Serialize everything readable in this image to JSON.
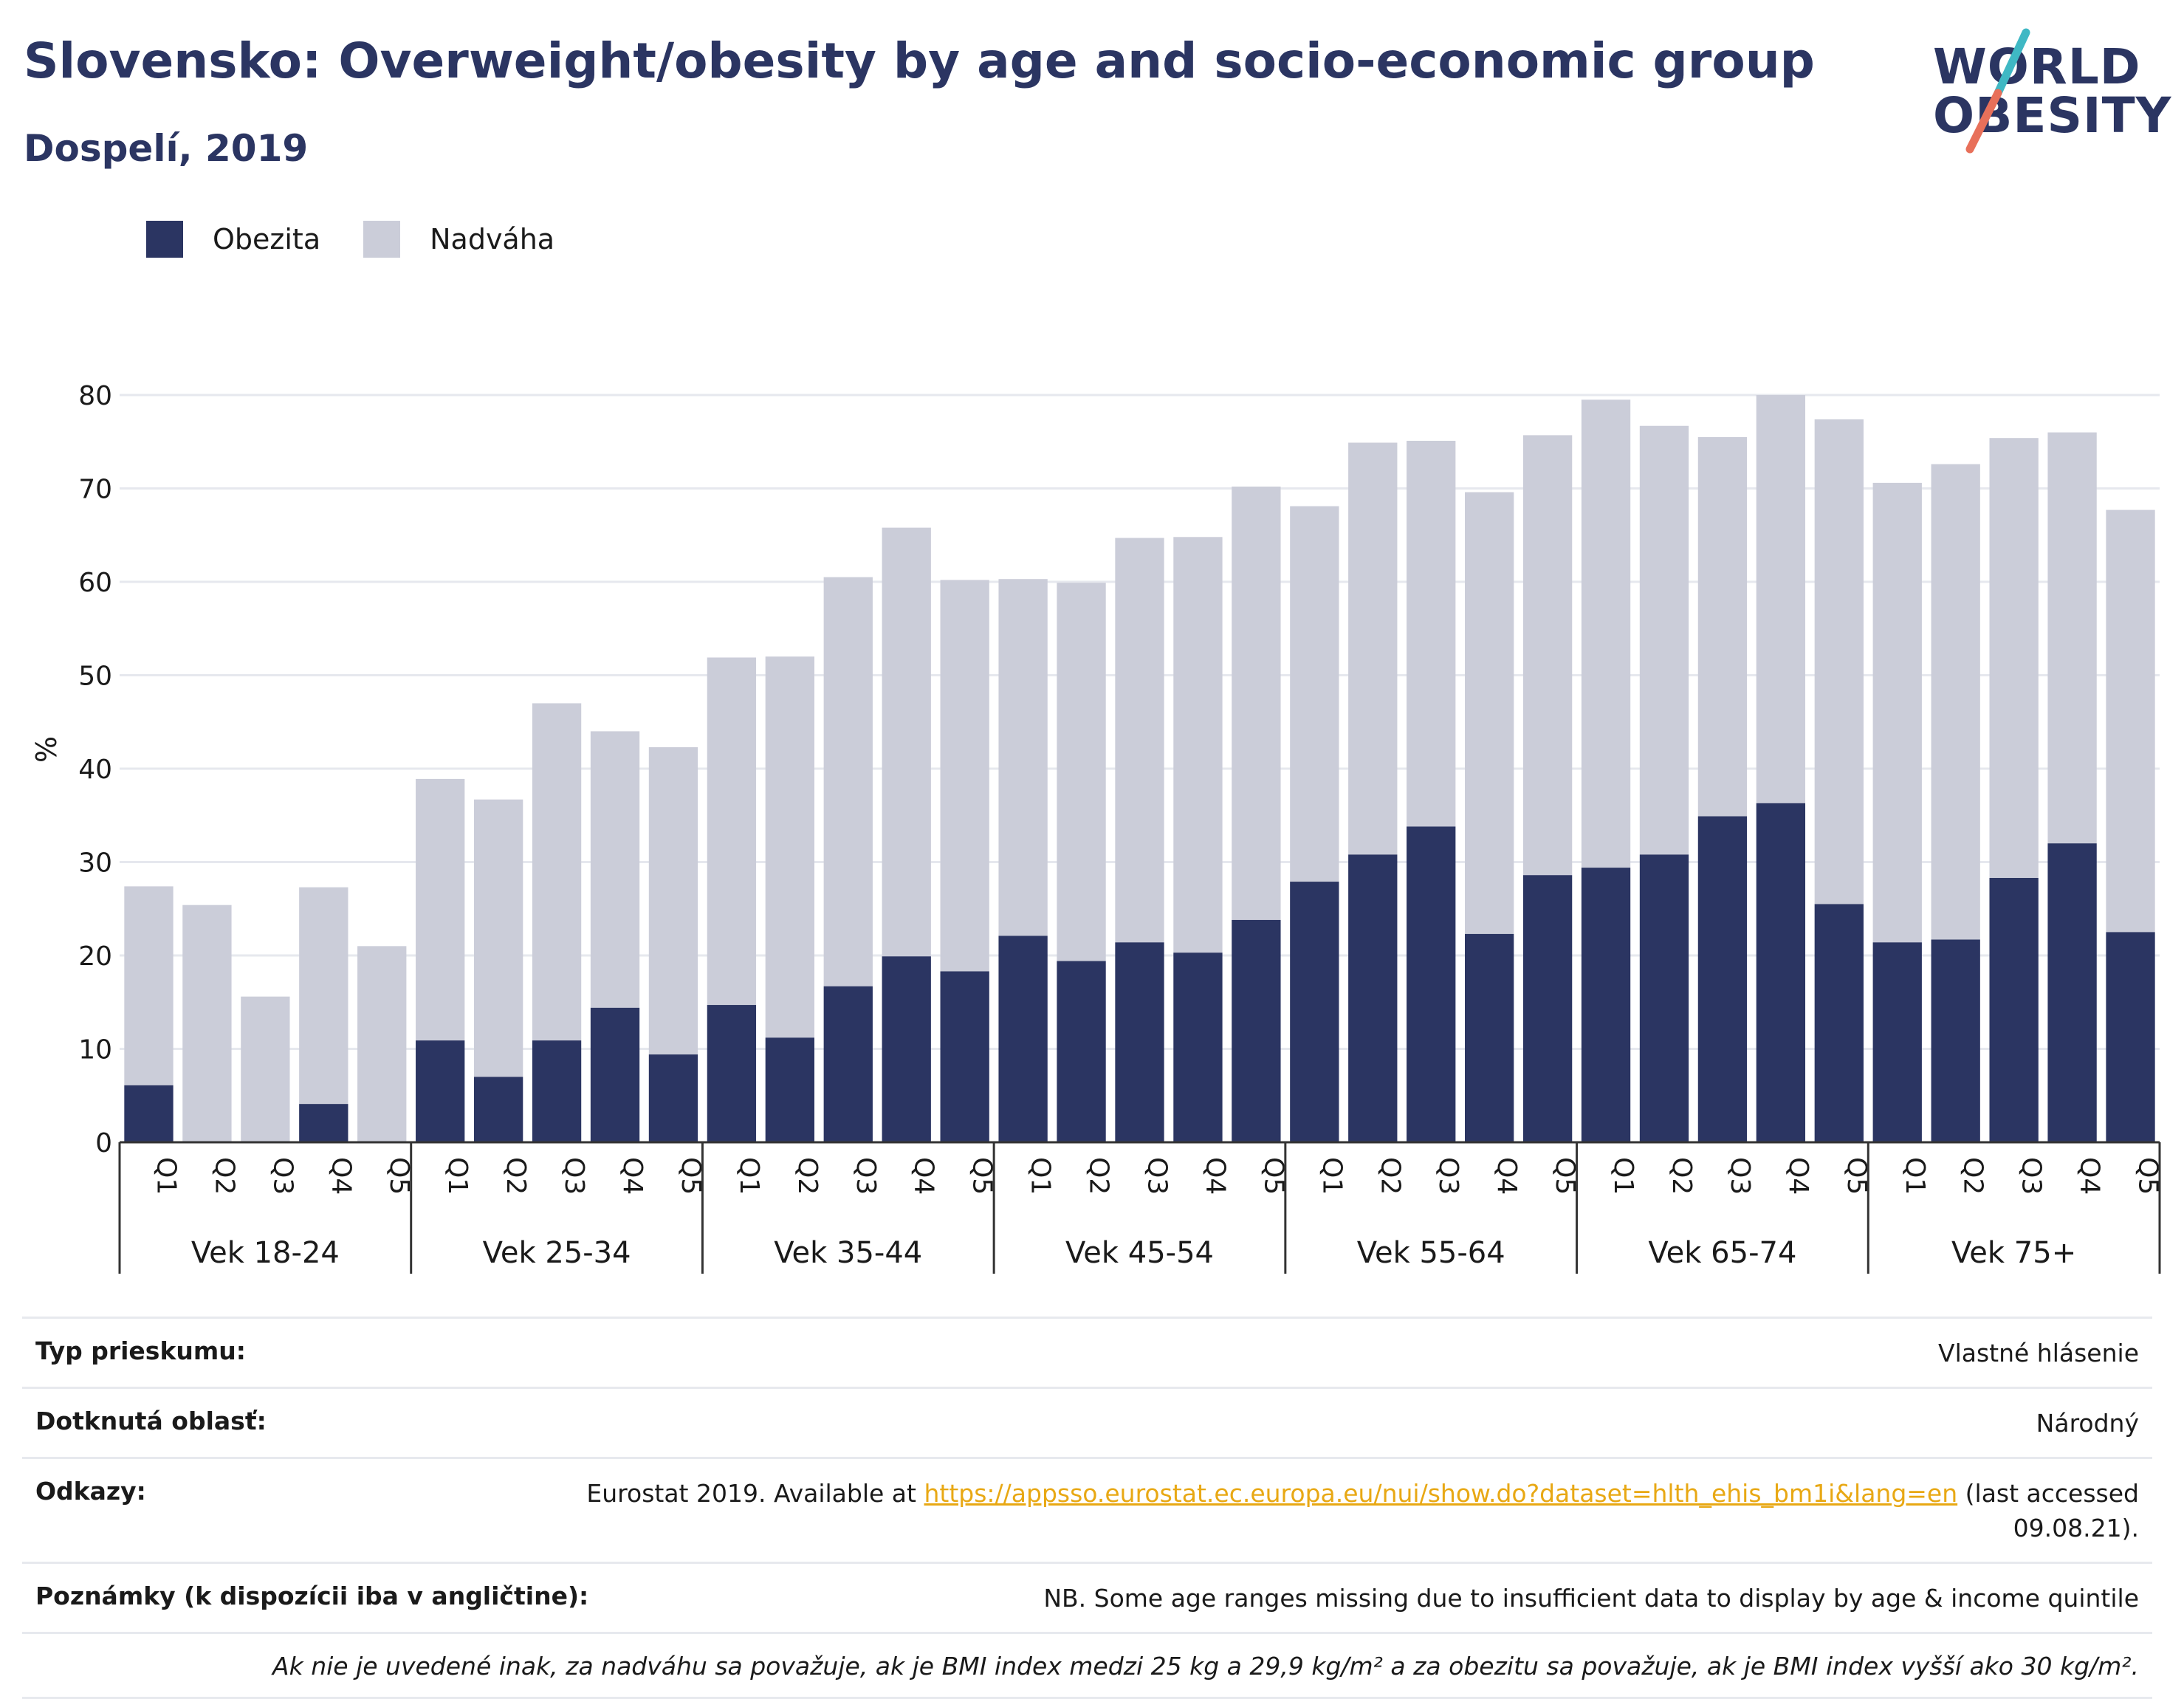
{
  "header": {
    "title": "Slovensko: Overweight/obesity by age and socio-economic group",
    "subtitle": "Dospelí, 2019"
  },
  "logo": {
    "line1": "WORLD",
    "line2": "OBESITY",
    "colors": [
      "#2b3562",
      "#3fb8c4",
      "#e8705a"
    ]
  },
  "colors": {
    "obesity": "#2b3562",
    "overweight": "#cbcdd9",
    "text": "#1a1a1a",
    "grid": "#e6e8ee",
    "axis": "#333333"
  },
  "chart_data": {
    "type": "bar",
    "stacked": true,
    "ylabel": "%",
    "ylim": [
      0,
      80
    ],
    "yticks": [
      0,
      10,
      20,
      30,
      40,
      50,
      60,
      70,
      80
    ],
    "grid": true,
    "legend_position": "top-left",
    "legend": [
      {
        "name": "Obezita",
        "color": "#2b3562"
      },
      {
        "name": "Nadváha",
        "color": "#cbcdd9"
      }
    ],
    "groups": [
      {
        "label": "Vek 18-24",
        "quintiles": [
          "Q1",
          "Q2",
          "Q3",
          "Q4",
          "Q5"
        ],
        "obesity": [
          6.1,
          0,
          0,
          4.1,
          0
        ],
        "total": [
          27.4,
          25.4,
          15.6,
          27.3,
          21.0
        ]
      },
      {
        "label": "Vek 25-34",
        "quintiles": [
          "Q1",
          "Q2",
          "Q3",
          "Q4",
          "Q5"
        ],
        "obesity": [
          10.9,
          7.0,
          10.9,
          14.4,
          9.4
        ],
        "total": [
          38.9,
          36.7,
          47.0,
          44.0,
          42.3
        ]
      },
      {
        "label": "Vek 35-44",
        "quintiles": [
          "Q1",
          "Q2",
          "Q3",
          "Q4",
          "Q5"
        ],
        "obesity": [
          14.7,
          11.2,
          16.7,
          19.9,
          18.3
        ],
        "total": [
          51.9,
          52.0,
          60.5,
          65.8,
          60.2
        ]
      },
      {
        "label": "Vek 45-54",
        "quintiles": [
          "Q1",
          "Q2",
          "Q3",
          "Q4",
          "Q5"
        ],
        "obesity": [
          22.1,
          19.4,
          21.4,
          20.3,
          23.8
        ],
        "total": [
          60.3,
          59.9,
          64.7,
          64.8,
          70.2
        ]
      },
      {
        "label": "Vek 55-64",
        "quintiles": [
          "Q1",
          "Q2",
          "Q3",
          "Q4",
          "Q5"
        ],
        "obesity": [
          27.9,
          30.8,
          33.8,
          22.3,
          28.6
        ],
        "total": [
          68.1,
          74.9,
          75.1,
          69.6,
          75.7
        ]
      },
      {
        "label": "Vek 65-74",
        "quintiles": [
          "Q1",
          "Q2",
          "Q3",
          "Q4",
          "Q5"
        ],
        "obesity": [
          29.4,
          30.8,
          34.9,
          36.3,
          25.5
        ],
        "total": [
          79.5,
          76.7,
          75.5,
          80.0,
          77.4
        ]
      },
      {
        "label": "Vek 75+",
        "quintiles": [
          "Q1",
          "Q2",
          "Q3",
          "Q4",
          "Q5"
        ],
        "obesity": [
          21.4,
          21.7,
          28.3,
          32.0,
          22.5
        ],
        "total": [
          70.6,
          72.6,
          75.4,
          76.0,
          67.7
        ]
      }
    ]
  },
  "info": {
    "survey_label": "Typ prieskumu:",
    "survey_value": "Vlastné hlásenie",
    "area_label": "Dotknutá oblasť:",
    "area_value": "Národný",
    "refs_label": "Odkazy:",
    "refs_prefix": "Eurostat 2019. Available at",
    "refs_link": "https://appsso.eurostat.ec.europa.eu/nui/show.do?dataset=hlth_ehis_bm1i&lang=en",
    "refs_suffix": "(last accessed 09.08.21).",
    "notes_label": "Poznámky (k dispozícii iba v angličtine):",
    "notes_value": "NB. Some age ranges missing due to insufficient data to display by age & income quintile",
    "footnote": "Ak nie je uvedené inak, za nadváhu sa považuje, ak je BMI index medzi 25 kg a 29,9 kg/m² a za obezitu sa považuje, ak je BMI index vyšší ako 30 kg/m²."
  }
}
